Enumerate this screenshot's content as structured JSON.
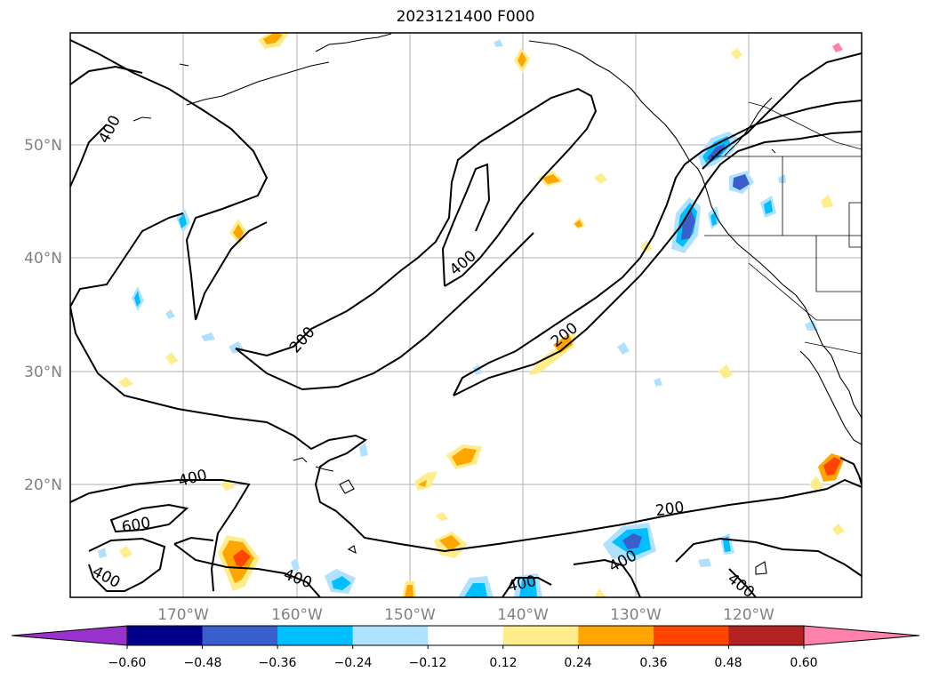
{
  "title": "2023121400 F000",
  "map": {
    "lon_labels": [
      "170°W",
      "160°W",
      "150°W",
      "140°W",
      "130°W",
      "120°W"
    ],
    "lat_labels": [
      "50°N",
      "40°N",
      "30°N",
      "20°N"
    ],
    "contour_labels": [
      "400",
      "200",
      "400",
      "200",
      "400",
      "600",
      "400",
      "400",
      "200",
      "400",
      "400",
      "400"
    ]
  },
  "colorbar": {
    "tick_labels": [
      "−0.60",
      "−0.48",
      "−0.36",
      "−0.24",
      "−0.12",
      "0.12",
      "0.24",
      "0.36",
      "0.48",
      "0.60"
    ],
    "colors": [
      "#9932cc",
      "#00008b",
      "#3a5fcd",
      "#00bfff",
      "#b0e2ff",
      "#ffffff",
      "#ffec8b",
      "#ffa500",
      "#ff4500",
      "#b22222",
      "#ff82ab"
    ]
  }
}
